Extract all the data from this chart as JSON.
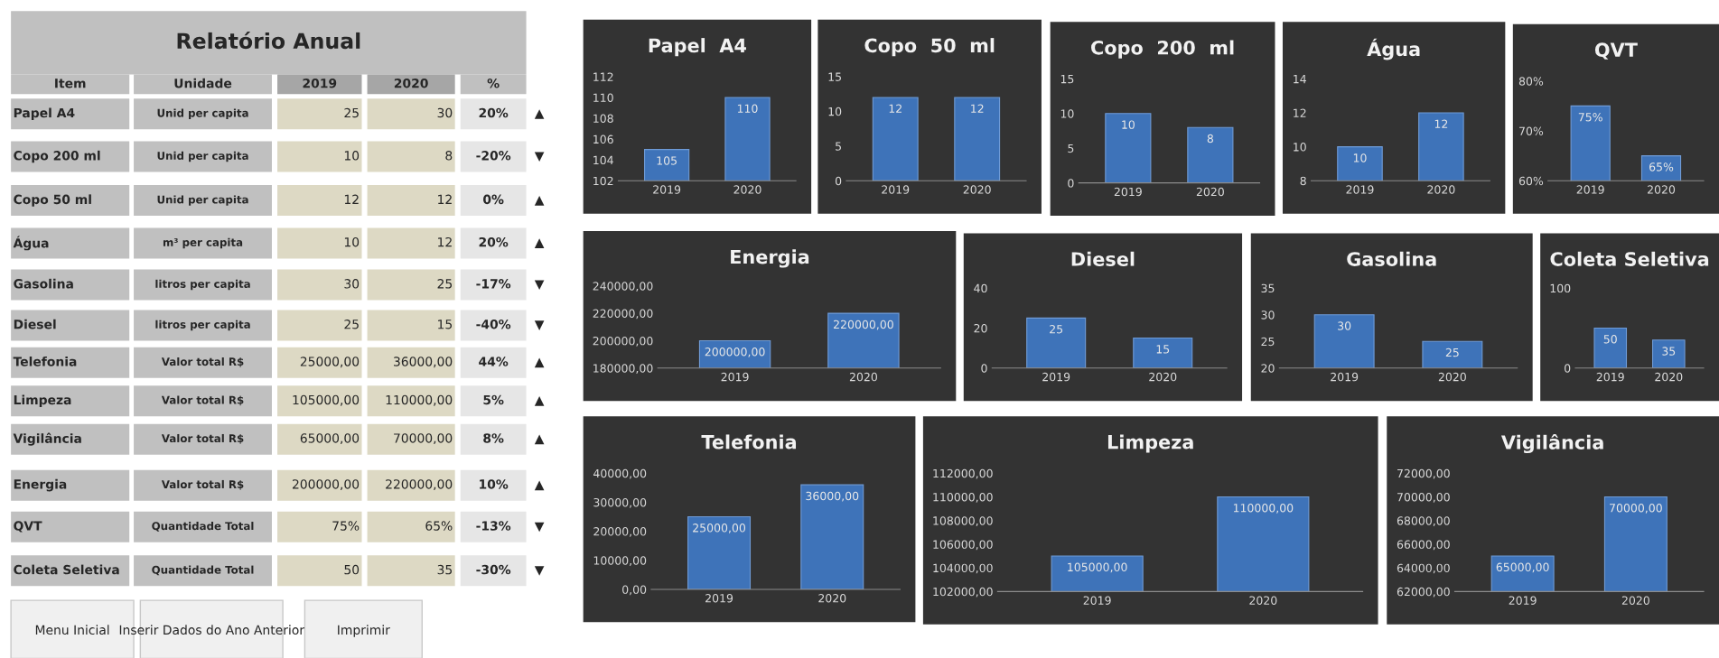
{
  "chart_data": [
    {
      "type": "other",
      "title": "Relatório Anual",
      "annotations": [
        "Item",
        "Unidade",
        "2019",
        "2020",
        "%",
        "Papel A4",
        "Unid per capita",
        "25",
        "30",
        "20%",
        "▲",
        "Copo 200 ml",
        "Unid per capita",
        "10",
        "8",
        "-20%",
        "▼",
        "Copo 50 ml",
        "Unid per capita",
        "12",
        "12",
        "0%",
        "▲",
        "Água",
        "m³ per capita",
        "10",
        "12",
        "20%",
        "▲",
        "Gasolina",
        "litros per capita",
        "30",
        "25",
        "-17%",
        "▼",
        "Diesel",
        "litros per capita",
        "25",
        "15",
        "-40%",
        "▼",
        "Telefonia",
        "Valor total R$",
        "25000,00",
        "36000,00",
        "44%",
        "▲",
        "Limpeza",
        "Valor total R$",
        "105000,00",
        "110000,00",
        "5%",
        "▲",
        "Vigilância",
        "Valor total R$",
        "65000,00",
        "70000,00",
        "8%",
        "▲",
        "Energia",
        "Valor total R$",
        "200000,00",
        "220000,00",
        "10%",
        "▲",
        "QVT",
        "Quantidade Total",
        "75%",
        "65%",
        "-13%",
        "▼",
        "Coleta Seletiva",
        "Quantidade Total",
        "50",
        "35",
        "-30%",
        "▼",
        "Menu Inicial",
        "Inserir Dados do Ano Anterior",
        "Imprimir"
      ]
    },
    {
      "type": "bar",
      "title": "Papel  A4",
      "categories": [
        "2019",
        "2020"
      ],
      "values": [
        105,
        110
      ],
      "color": "#3e73b9",
      "ylim": [
        102,
        112
      ],
      "yticks": [
        102,
        104,
        106,
        108,
        110,
        112
      ],
      "data_labels": true
    },
    {
      "type": "bar",
      "title": "Copo  50  ml",
      "categories": [
        "2019",
        "2020"
      ],
      "values": [
        12,
        12
      ],
      "color": "#3e73b9",
      "ylim": [
        0,
        15
      ],
      "yticks": [
        0,
        5,
        10,
        15
      ],
      "data_labels": true
    },
    {
      "type": "bar",
      "title": "Copo  200  ml",
      "categories": [
        "2019",
        "2020"
      ],
      "values": [
        10,
        8
      ],
      "color": "#3e73b9",
      "ylim": [
        0,
        15
      ],
      "yticks": [
        0,
        5,
        10,
        15
      ],
      "data_labels": true
    },
    {
      "type": "bar",
      "title": "Água",
      "categories": [
        "2019",
        "2020"
      ],
      "values": [
        10,
        12
      ],
      "color": "#3e73b9",
      "ylim": [
        8,
        14
      ],
      "yticks": [
        8,
        10,
        12,
        14
      ],
      "data_labels": true
    },
    {
      "type": "bar",
      "title": "QVT",
      "categories": [
        "2019",
        "2020"
      ],
      "values": [
        75,
        65
      ],
      "color": "#3e73b9",
      "ylim": [
        60,
        80
      ],
      "yticks": [
        {
          "value": 60,
          "label": "60%"
        },
        {
          "value": 70,
          "label": "70%"
        },
        {
          "value": 80,
          "label": "80%"
        }
      ],
      "value_labels": [
        "75%",
        "65%"
      ]
    },
    {
      "type": "bar",
      "title": "Energia",
      "categories": [
        "2019",
        "2020"
      ],
      "values": [
        200000,
        220000
      ],
      "color": "#3e73b9",
      "ylim": [
        180000,
        240000
      ],
      "yticks": [
        {
          "value": 180000,
          "label": "180000,00"
        },
        {
          "value": 200000,
          "label": "200000,00"
        },
        {
          "value": 220000,
          "label": "220000,00"
        },
        {
          "value": 240000,
          "label": "240000,00"
        }
      ],
      "value_labels": [
        "200000,00",
        "220000,00"
      ]
    },
    {
      "type": "bar",
      "title": "Diesel",
      "categories": [
        "2019",
        "2020"
      ],
      "values": [
        25,
        15
      ],
      "color": "#3e73b9",
      "ylim": [
        0,
        40
      ],
      "yticks": [
        0,
        20,
        40
      ],
      "data_labels": true
    },
    {
      "type": "bar",
      "title": "Gasolina",
      "categories": [
        "2019",
        "2020"
      ],
      "values": [
        30,
        25
      ],
      "color": "#3e73b9",
      "ylim": [
        20,
        35
      ],
      "yticks": [
        20,
        25,
        30,
        35
      ],
      "data_labels": true
    },
    {
      "type": "bar",
      "title": "Coleta Seletiva",
      "categories": [
        "2019",
        "2020"
      ],
      "values": [
        50,
        35
      ],
      "color": "#3e73b9",
      "ylim": [
        0,
        100
      ],
      "yticks": [
        0,
        100
      ],
      "data_labels": true
    },
    {
      "type": "bar",
      "title": "Telefonia",
      "categories": [
        "2019",
        "2020"
      ],
      "values": [
        25000,
        36000
      ],
      "color": "#3e73b9",
      "ylim": [
        0,
        40000
      ],
      "yticks": [
        {
          "value": 0,
          "label": "0,00"
        },
        {
          "value": 10000,
          "label": "10000,00"
        },
        {
          "value": 20000,
          "label": "20000,00"
        },
        {
          "value": 30000,
          "label": "30000,00"
        },
        {
          "value": 40000,
          "label": "40000,00"
        }
      ],
      "value_labels": [
        "25000,00",
        "36000,00"
      ]
    },
    {
      "type": "bar",
      "title": "Limpeza",
      "categories": [
        "2019",
        "2020"
      ],
      "values": [
        105000,
        110000
      ],
      "color": "#3e73b9",
      "ylim": [
        102000,
        112000
      ],
      "yticks": [
        {
          "value": 102000,
          "label": "102000,00"
        },
        {
          "value": 104000,
          "label": "104000,00"
        },
        {
          "value": 106000,
          "label": "106000,00"
        },
        {
          "value": 108000,
          "label": "108000,00"
        },
        {
          "value": 110000,
          "label": "110000,00"
        },
        {
          "value": 112000,
          "label": "112000,00"
        }
      ],
      "value_labels": [
        "105000,00",
        "110000,00"
      ]
    },
    {
      "type": "bar",
      "title": "Vigilância",
      "categories": [
        "2019",
        "2020"
      ],
      "values": [
        65000,
        70000
      ],
      "color": "#3e73b9",
      "ylim": [
        62000,
        72000
      ],
      "yticks": [
        {
          "value": 62000,
          "label": "62000,00"
        },
        {
          "value": 64000,
          "label": "64000,00"
        },
        {
          "value": 66000,
          "label": "66000,00"
        },
        {
          "value": 68000,
          "label": "68000,00"
        },
        {
          "value": 70000,
          "label": "70000,00"
        },
        {
          "value": 72000,
          "label": "72000,00"
        }
      ],
      "value_labels": [
        "65000,00",
        "70000,00"
      ]
    }
  ]
}
